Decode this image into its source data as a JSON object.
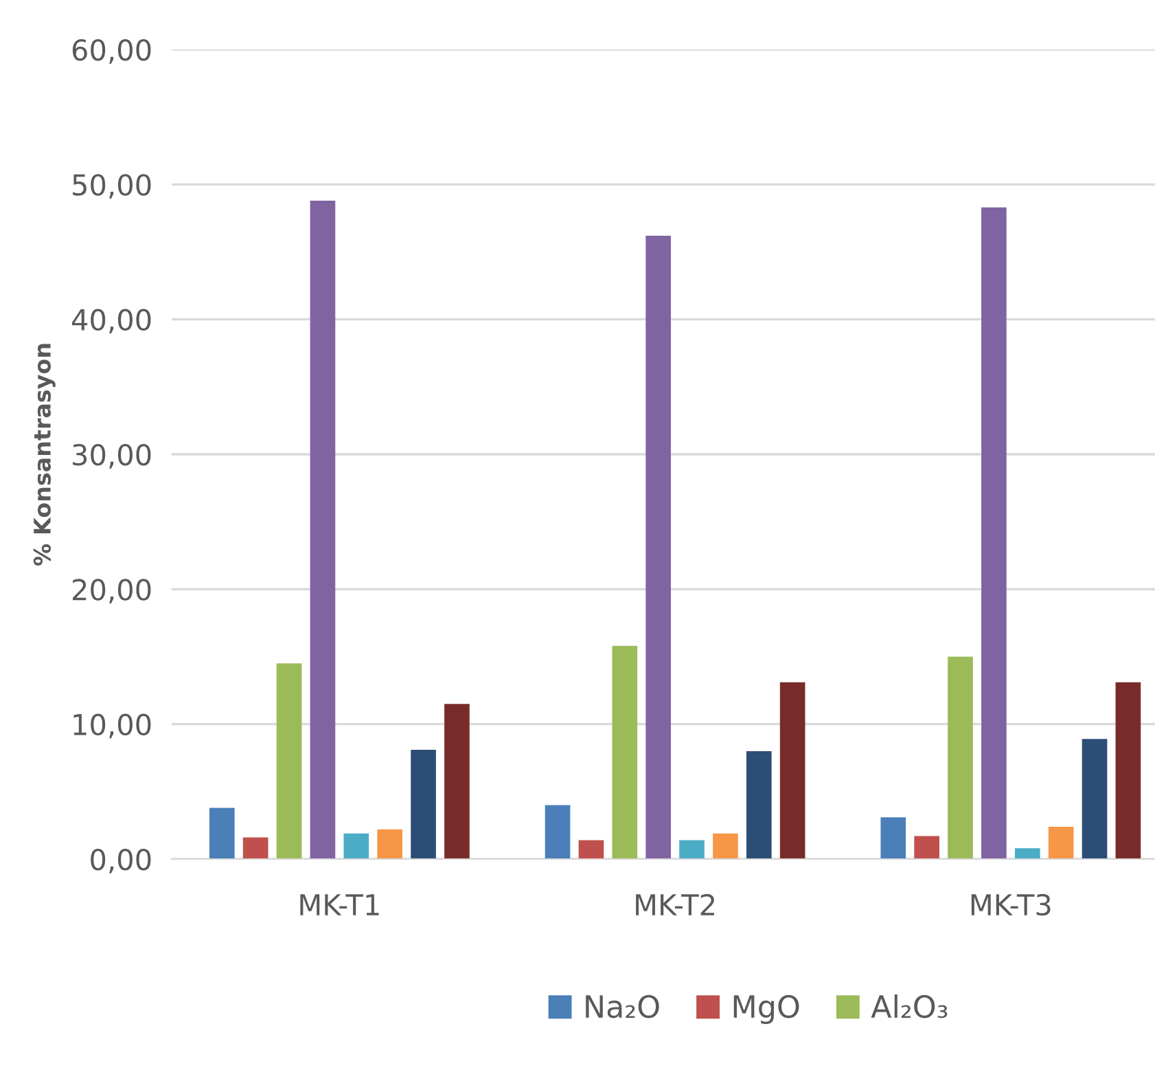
{
  "chart_data": {
    "type": "bar",
    "ylabel": "% Konsantrasyon",
    "categories": [
      "MK-T1",
      "MK-T2",
      "MK-T3"
    ],
    "series": [
      {
        "name": "Na₂O",
        "color": "#4a7fb8",
        "values": [
          3.8,
          4.0,
          3.1
        ]
      },
      {
        "name": "MgO",
        "color": "#c0504d",
        "values": [
          1.6,
          1.4,
          1.7
        ]
      },
      {
        "name": "Al₂O₃",
        "color": "#9bbb59",
        "values": [
          14.5,
          15.8,
          15.0
        ]
      },
      {
        "color": "#8064a2",
        "values": [
          48.8,
          46.2,
          48.3
        ]
      },
      {
        "color": "#4bacc6",
        "values": [
          1.9,
          1.4,
          0.8
        ]
      },
      {
        "color": "#f79646",
        "values": [
          2.2,
          1.9,
          2.4
        ]
      },
      {
        "color": "#2c4d75",
        "values": [
          8.1,
          8.0,
          8.9
        ]
      },
      {
        "color": "#772c2a",
        "values": [
          11.5,
          13.1,
          13.1
        ]
      }
    ],
    "ylim": [
      0,
      60
    ],
    "yticks": [
      {
        "value": 0,
        "label": "0,00"
      },
      {
        "value": 10,
        "label": "10,00"
      },
      {
        "value": 20,
        "label": "20,00"
      },
      {
        "value": 30,
        "label": "30,00"
      },
      {
        "value": 40,
        "label": "40,00"
      },
      {
        "value": 50,
        "label": "50,00"
      },
      {
        "value": 60,
        "label": "60,00"
      }
    ],
    "grid": "y",
    "legend": "bottom"
  }
}
